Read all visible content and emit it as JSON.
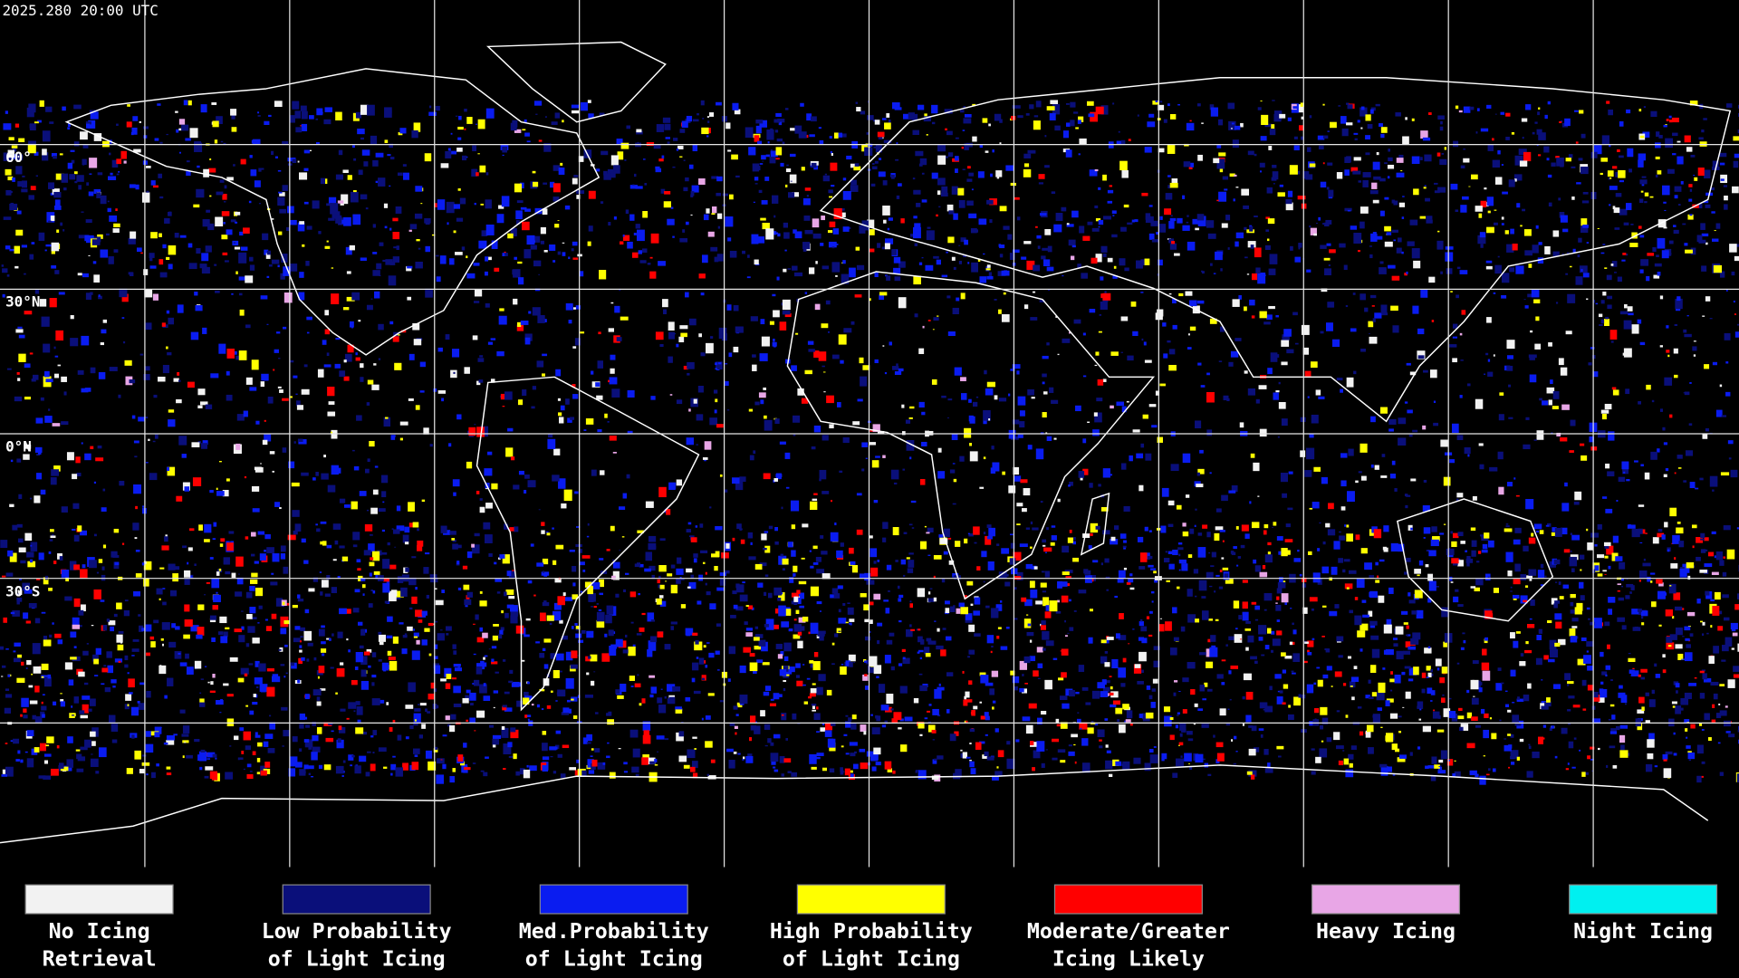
{
  "title": "2025.280 20:00 UTC",
  "latitude_labels": [
    "60°",
    "30°N",
    "0°N",
    "30°S"
  ],
  "legend": {
    "items": [
      {
        "label_lines": [
          "No Icing",
          "Retrieval"
        ],
        "color": "#f2f2f2"
      },
      {
        "label_lines": [
          "Low Probability",
          "of Light Icing"
        ],
        "color": "#0a0f7a"
      },
      {
        "label_lines": [
          "Med.Probability",
          "of Light Icing"
        ],
        "color": "#0a1cf0"
      },
      {
        "label_lines": [
          "High Probability",
          "of Light Icing"
        ],
        "color": "#ffff00"
      },
      {
        "label_lines": [
          "Moderate/Greater",
          "Icing Likely"
        ],
        "color": "#ff0000"
      },
      {
        "label_lines": [
          "Heavy Icing"
        ],
        "color": "#e8a6e6"
      },
      {
        "label_lines": [
          "Night Icing"
        ],
        "color": "#00f0f0"
      }
    ]
  }
}
